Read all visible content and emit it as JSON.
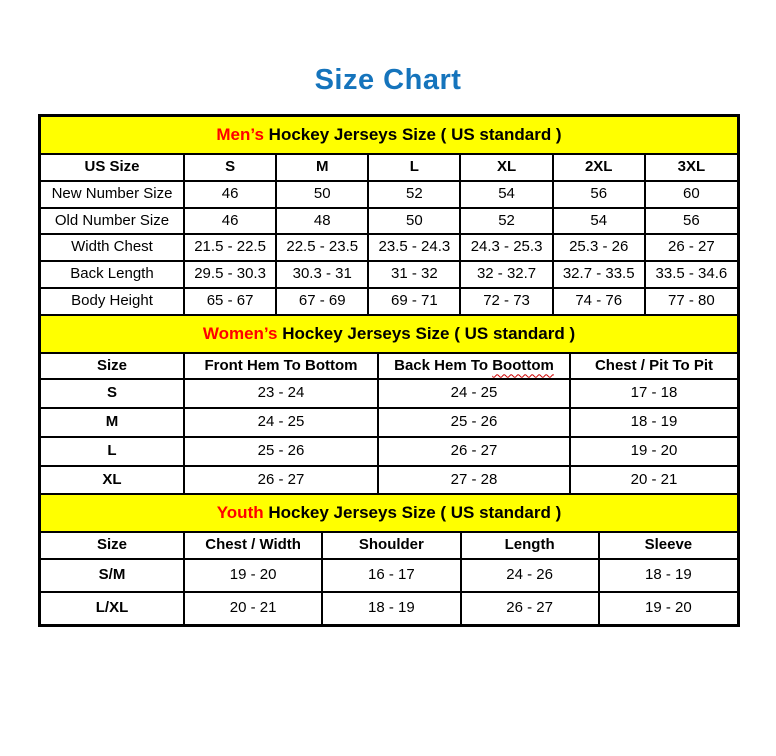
{
  "page": {
    "title": "Size Chart"
  },
  "colors": {
    "title_blue": "#1574bc",
    "band_yellow": "#ffff00",
    "highlight_red": "#ff0000"
  },
  "mens": {
    "band": {
      "highlight": "Men’s",
      "rest": "Hockey Jerseys Size ( US standard )"
    },
    "headers": [
      "US Size",
      "S",
      "M",
      "L",
      "XL",
      "2XL",
      "3XL"
    ],
    "rows": [
      {
        "label": "New Number Size",
        "values": [
          "46",
          "50",
          "52",
          "54",
          "56",
          "60"
        ]
      },
      {
        "label": "Old Number Size",
        "values": [
          "46",
          "48",
          "50",
          "52",
          "54",
          "56"
        ]
      },
      {
        "label": "Width Chest",
        "values": [
          "21.5 - 22.5",
          "22.5 - 23.5",
          "23.5 - 24.3",
          "24.3 - 25.3",
          "25.3 - 26",
          "26 - 27"
        ]
      },
      {
        "label": "Back Length",
        "values": [
          "29.5 - 30.3",
          "30.3 - 31",
          "31 - 32",
          "32 - 32.7",
          "32.7 - 33.5",
          "33.5 - 34.6"
        ]
      },
      {
        "label": "Body Height",
        "values": [
          "65 - 67",
          "67 - 69",
          "69 - 71",
          "72 - 73",
          "74 - 76",
          "77 - 80"
        ]
      }
    ]
  },
  "womens": {
    "band": {
      "highlight": "Women’s",
      "rest": "Hockey Jerseys Size ( US standard )"
    },
    "headers": [
      "Size",
      "Front Hem To Bottom",
      {
        "prefix": "Back Hem To",
        "typo": "Boottom"
      },
      "Chest / Pit To Pit"
    ],
    "rows": [
      {
        "label": "S",
        "values": [
          "23 - 24",
          "24 - 25",
          "17 - 18"
        ]
      },
      {
        "label": "M",
        "values": [
          "24 - 25",
          "25 - 26",
          "18 - 19"
        ]
      },
      {
        "label": "L",
        "values": [
          "25 - 26",
          "26 - 27",
          "19 - 20"
        ]
      },
      {
        "label": "XL",
        "values": [
          "26 - 27",
          "27 - 28",
          "20 - 21"
        ]
      }
    ]
  },
  "youth": {
    "band": {
      "highlight": "Youth",
      "rest": "Hockey Jerseys Size ( US standard )"
    },
    "headers": [
      "Size",
      "Chest / Width",
      "Shoulder",
      "Length",
      "Sleeve"
    ],
    "rows": [
      {
        "label": "S/M",
        "values": [
          "19 - 20",
          "16 - 17",
          "24 - 26",
          "18 - 19"
        ]
      },
      {
        "label": "L/XL",
        "values": [
          "20 - 21",
          "18 - 19",
          "26 - 27",
          "19 - 20"
        ]
      }
    ]
  }
}
